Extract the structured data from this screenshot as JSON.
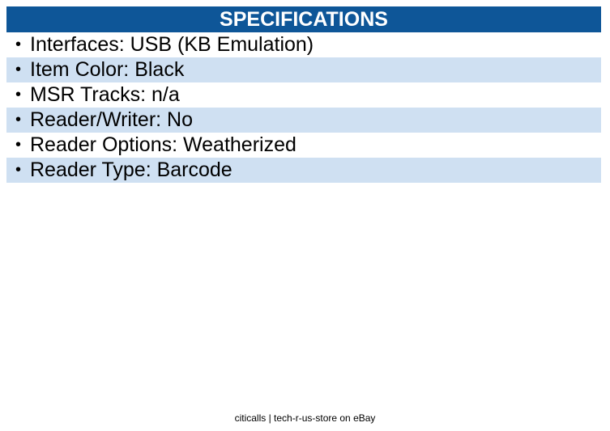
{
  "header": {
    "title": "SPECIFICATIONS"
  },
  "colors": {
    "header_bg": "#0e5698",
    "alt_row_bg": "#cfe0f2"
  },
  "specs": [
    {
      "text": "Interfaces: USB (KB Emulation)"
    },
    {
      "text": "Item Color: Black"
    },
    {
      "text": "MSR Tracks: n/a"
    },
    {
      "text": "Reader/Writer: No"
    },
    {
      "text": "Reader Options: Weatherized"
    },
    {
      "text": "Reader Type: Barcode"
    }
  ],
  "bullet": "•",
  "footer": {
    "text": "citicalls | tech-r-us-store on eBay"
  }
}
